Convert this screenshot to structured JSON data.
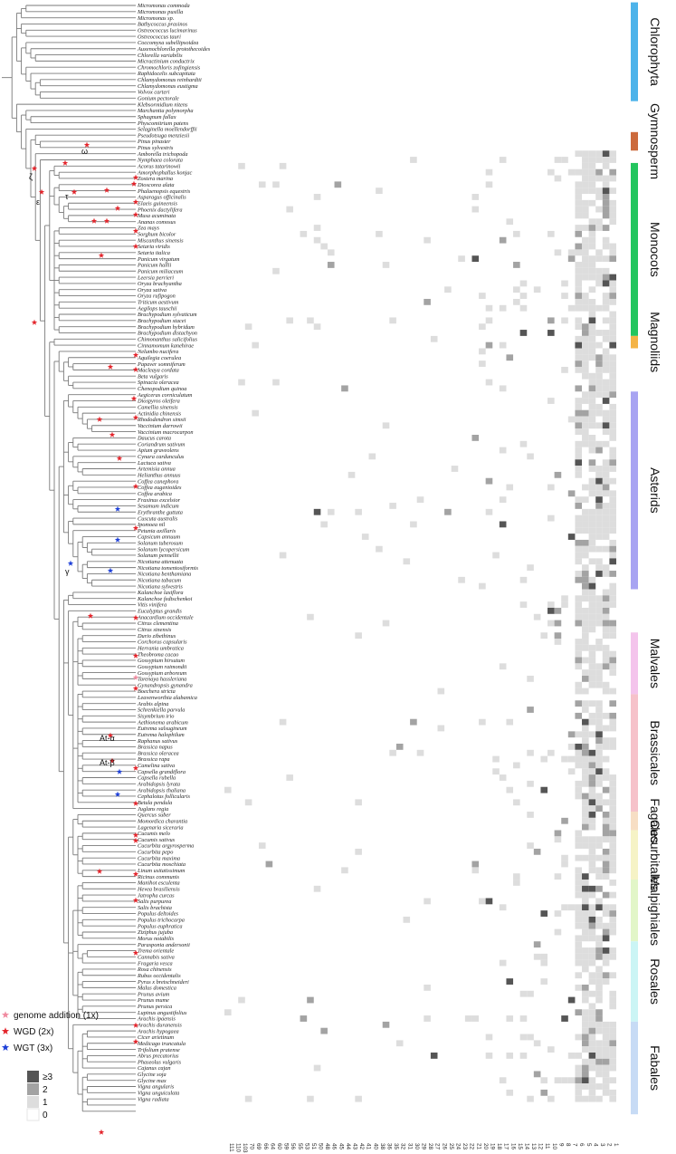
{
  "species": [
    "Micromonas commoda",
    "Micromonas pusilla",
    "Micromonas sp.",
    "Bathycoccus prasinos",
    "Ostreococcus lucimarinus",
    "Ostreococcus tauri",
    "Coccomyxa subellipsoidea",
    "Auxenochlorella protothecoides",
    "Chlorella variabilis",
    "Micractinium conductrix",
    "Chromochloris zofingiensis",
    "Raphidocelis subcapitata",
    "Chlamydomonas reinhardtii",
    "Chlamydomonas eustigma",
    "Volvox carteri",
    "Gonium pectorale",
    "Klebsormidium nitens",
    "Marchantia polymorpha",
    "Sphagnum fallax",
    "Physcomitrium patens",
    "Selaginella moellendorffii",
    "Pseudotsuga menziesii",
    "Pinus pinaster",
    "Pinus sylvestris",
    "Amborella trichopoda",
    "Nymphaea colorata",
    "Acorus tatarinowii",
    "Amorphophallus konjac",
    "Zostera marina",
    "Dioscorea alata",
    "Phalaenopsis equestris",
    "Asparagus officinalis",
    "Elaeis guineensis",
    "Phoenix dactylifera",
    "Musa acuminata",
    "Ananas comosus",
    "Zea mays",
    "Sorghum bicolor",
    "Miscanthus sinensis",
    "Setaria viridis",
    "Setaria italica",
    "Panicum virgatum",
    "Panicum hallii",
    "Panicum miliaceum",
    "Leersia perrieri",
    "Oryza brachyantha",
    "Oryza sativa",
    "Oryza rufipogon",
    "Triticum aestivum",
    "Aegilops tauschii",
    "Brachypodium sylvaticum",
    "Brachypodium stacei",
    "Brachypodium hybridum",
    "Brachypodium distachyon",
    "Chimonanthus salicifolius",
    "Cinnamomum kanehirae",
    "Nelumbo nucifera",
    "Aquilegia coerulea",
    "Papaver somniferum",
    "Macleaya cordata",
    "Beta vulgaris",
    "Spinacia oleracea",
    "Chenopodium quinoa",
    "Aegiceras corniculatum",
    "Diospyros oleifera",
    "Camellia sinensis",
    "Actinidia chinensis",
    "Rhododendron simsii",
    "Vaccinium darrowii",
    "Vaccinium macrocarpon",
    "Daucus carota",
    "Coriandrum sativum",
    "Apium graveolens",
    "Cynara cardunculus",
    "Lactuca sativa",
    "Artemisia annua",
    "Helianthus annuus",
    "Coffea canephora",
    "Coffea eugenioides",
    "Coffea arabica",
    "Fraxinus excelsior",
    "Sesamum indicum",
    "Erythranthe guttata",
    "Cuscuta australis",
    "Ipomoea nil",
    "Petunia axillaris",
    "Capsicum annuum",
    "Solanum tuberosum",
    "Solanum lycopersicum",
    "Solanum pennellii",
    "Nicotiana attenuata",
    "Nicotiana tomentosiformis",
    "Nicotiana benthamiana",
    "Nicotiana tabacum",
    "Nicotiana sylvestris",
    "Kalanchoe laxiflora",
    "Kalanchoe fedtschenkoi",
    "Vitis vinifera",
    "Eucalyptus grandis",
    "Anacardium occidentale",
    "Citrus clementina",
    "Citrus sinensis",
    "Durio zibethinus",
    "Corchorus capsularis",
    "Herrania umbratica",
    "Theobroma cacao",
    "Gossypium hirsutum",
    "Gossypium raimondii",
    "Gossypium arboreum",
    "Tarenaya hassleriana",
    "Gynandropsis gynandra",
    "Boechera stricta",
    "Leavenworthia alabamica",
    "Arabis alpina",
    "Schrenkiella parvula",
    "Sisymbrium irio",
    "Aethionema arabicum",
    "Eutrema salsugineum",
    "Eutrema halophilum",
    "Raphanus sativus",
    "Brassica napus",
    "Brassica oleracea",
    "Brassica rapa",
    "Camelina sativa",
    "Capsella grandiflora",
    "Capsella rubella",
    "Arabidopsis lyrata",
    "Arabidopsis thaliana",
    "Cephalotus follicularis",
    "Betula pendula",
    "Juglans regia",
    "Quercus suber",
    "Momordica charantia",
    "Lagenaria siceraria",
    "Cucumis melo",
    "Cucumis sativus",
    "Cucurbita argyrosperma",
    "Cucurbita pepo",
    "Cucurbita maxima",
    "Cucurbita moschiata",
    "Linum usitatissimum",
    "Ricinus communis",
    "Manihot esculenta",
    "Hevea brasiliensis",
    "Jatropha curcas",
    "Salix purpurea",
    "Salix brachista",
    "Populus deltoides",
    "Populus trichocarpa",
    "Populus euphratica",
    "Ziziphus jujuba",
    "Morus notabilis",
    "Parasponia andersonii",
    "Trema orientale",
    "Cannabis sativa",
    "Fragaria vesca",
    "Rosa chinensis",
    "Rubus occidentalis",
    "Pyrus x bretschneideri",
    "Malus domestica",
    "Prunus avium",
    "Prunus mume",
    "Prunus persica",
    "Lupinus angustifolius",
    "Arachis ipaensis",
    "Arachis duranensis",
    "Arachis hypogaea",
    "Cicer arietinum",
    "Medicago truncatula",
    "Trifolium pratense",
    "Abrus precatorius",
    "Phaseolus vulgaris",
    "Cajanus cajan",
    "Glycine soja",
    "Glycine max",
    "Vigna angularis",
    "Vigna unguiculata",
    "Vigna radiata"
  ],
  "clades": [
    {
      "name": "Chlorophyta",
      "from": 0,
      "to": 15,
      "color": "#4db3ea"
    },
    {
      "name": "Gymnosperm",
      "from": 21,
      "to": 23,
      "color": "#cc6a3c"
    },
    {
      "name": "Monocots",
      "from": 26,
      "to": 53,
      "color": "#23c55e"
    },
    {
      "name": "Magnoliids",
      "from": 54,
      "to": 55,
      "color": "#f4b446"
    },
    {
      "name": "Asterids",
      "from": 63,
      "to": 94,
      "color": "#a8a4f2"
    },
    {
      "name": "Malvales",
      "from": 102,
      "to": 111,
      "color": "#f4c4ec"
    },
    {
      "name": "Brassicales",
      "from": 112,
      "to": 130,
      "color": "#f6c2ca"
    },
    {
      "name": "Fagales",
      "from": 131,
      "to": 133,
      "color": "#f7dec4"
    },
    {
      "name": "Cucurbitales",
      "from": 134,
      "to": 141,
      "color": "#f6f3c6"
    },
    {
      "name": "Malpighiales",
      "from": 142,
      "to": 151,
      "color": "#e2f6c8"
    },
    {
      "name": "Rosales",
      "from": 152,
      "to": 164,
      "color": "#cbf5f5"
    },
    {
      "name": "Fabales",
      "from": 165,
      "to": 179,
      "color": "#c7dbf5"
    }
  ],
  "events": [
    {
      "label": "ω"
    },
    {
      "label": "ζ"
    },
    {
      "label": "ε"
    },
    {
      "label": "τ"
    },
    {
      "label": "γ"
    },
    {
      "label": "At-α"
    },
    {
      "label": "At-β"
    }
  ],
  "columns": [
    "111",
    "110",
    "103",
    "70",
    "69",
    "66",
    "64",
    "60",
    "59",
    "56",
    "55",
    "53",
    "51",
    "50",
    "48",
    "46",
    "45",
    "44",
    "43",
    "42",
    "41",
    "40",
    "38",
    "36",
    "35",
    "32",
    "31",
    "30",
    "29",
    "28",
    "27",
    "26",
    "25",
    "24",
    "23",
    "22",
    "21",
    "20",
    "19",
    "18",
    "17",
    "16",
    "15",
    "14",
    "13",
    "12",
    "11",
    "10",
    "9",
    "8",
    "7",
    "6",
    "5",
    "4",
    "3",
    "2",
    "1"
  ],
  "legend": {
    "markers": [
      {
        "label": "genome addition (1x)",
        "color": "#f08ba0"
      },
      {
        "label": "WGD (2x)",
        "color": "#e3242b"
      },
      {
        "label": "WGT (3x)",
        "color": "#1d3fd8"
      }
    ],
    "scale": [
      {
        "label": "≥3",
        "color": "#555555"
      },
      {
        "label": "2",
        "color": "#a3a3a3"
      },
      {
        "label": "1",
        "color": "#dddddd"
      },
      {
        "label": "0",
        "color": "#ffffff"
      }
    ]
  }
}
